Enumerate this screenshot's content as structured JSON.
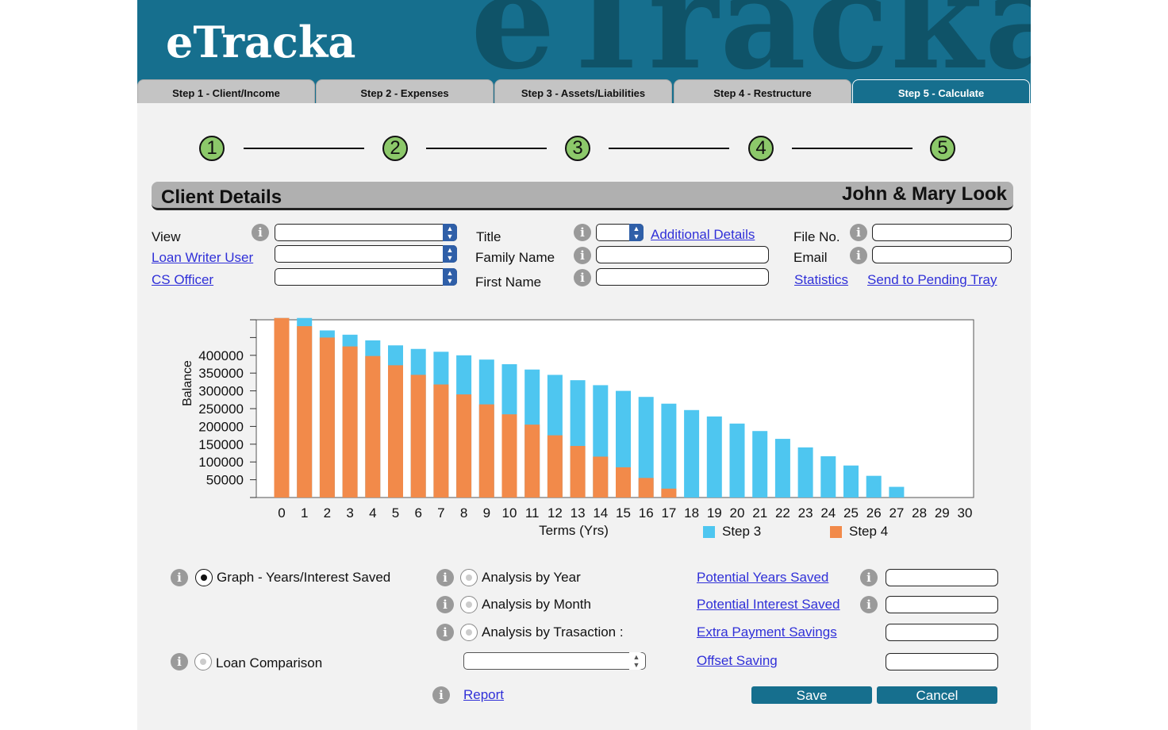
{
  "app": {
    "logo": "eTracka",
    "bg_wordmark": "eTracka"
  },
  "tabs": [
    {
      "label": "Step 1 - Client/Income",
      "active": false
    },
    {
      "label": "Step 2 - Expenses",
      "active": false
    },
    {
      "label": "Step 3 - Assets/Liabilities",
      "active": false
    },
    {
      "label": "Step 4 - Restructure",
      "active": false
    },
    {
      "label": "Step 5 - Calculate",
      "active": true
    }
  ],
  "steps": [
    "1",
    "2",
    "3",
    "4",
    "5"
  ],
  "client": {
    "title": "Client Details",
    "name": "John & Mary Look"
  },
  "form": {
    "view_label": "View",
    "loan_writer_link": "Loan Writer User",
    "cs_officer_link": "CS Officer",
    "title_label": "Title",
    "additional_details_link": "Additional Details",
    "family_name_label": "Family Name",
    "first_name_label": "First Name",
    "file_no_label": "File No.",
    "email_label": "Email",
    "statistics_link": "Statistics",
    "send_pending_link": "Send to Pending Tray",
    "view_value": "",
    "loan_writer_value": "",
    "cs_officer_value": "",
    "title_value": "",
    "family_name_value": "",
    "first_name_value": "",
    "file_no_value": "",
    "email_value": ""
  },
  "chart_data": {
    "type": "bar",
    "xlabel": "Terms (Yrs)",
    "ylabel": "Balance",
    "ylim": [
      0,
      500000
    ],
    "y_ticks": [
      50000,
      100000,
      150000,
      200000,
      250000,
      300000,
      350000,
      400000
    ],
    "categories": [
      "0",
      "1",
      "2",
      "3",
      "4",
      "5",
      "6",
      "7",
      "8",
      "9",
      "10",
      "11",
      "12",
      "13",
      "14",
      "15",
      "16",
      "17",
      "18",
      "19",
      "20",
      "21",
      "22",
      "23",
      "24",
      "25",
      "26",
      "27",
      "28",
      "29",
      "30"
    ],
    "series": [
      {
        "name": "Step 3",
        "color": "#4ec6f0",
        "values": [
          505000,
          505000,
          470000,
          458000,
          442000,
          428000,
          418000,
          410000,
          400000,
          388000,
          375000,
          360000,
          345000,
          330000,
          316000,
          300000,
          283000,
          264000,
          246000,
          228000,
          208000,
          187000,
          165000,
          141000,
          116000,
          90000,
          61000,
          30000,
          0,
          0,
          0
        ]
      },
      {
        "name": "Step 4",
        "color": "#f28a4a",
        "values": [
          505000,
          482000,
          450000,
          425000,
          398000,
          372000,
          345000,
          318000,
          290000,
          262000,
          234000,
          205000,
          175000,
          145000,
          115000,
          85000,
          55000,
          25000,
          0,
          0,
          0,
          0,
          0,
          0,
          0,
          0,
          0,
          0,
          0,
          0,
          0
        ]
      }
    ],
    "legend_position": "bottom-right",
    "grid": false
  },
  "options": {
    "graph_label": "Graph - Years/Interest Saved",
    "loan_comparison_label": "Loan Comparison",
    "analysis_year_label": "Analysis by Year",
    "analysis_month_label": "Analysis by Month",
    "analysis_transaction_label": "Analysis by Trasaction :",
    "report_link": "Report",
    "transaction_select_value": ""
  },
  "savings": {
    "potential_years_link": "Potential Years Saved",
    "potential_interest_link": "Potential Interest Saved",
    "extra_payment_link": "Extra Payment Savings",
    "offset_saving_link": "Offset Saving",
    "potential_years_value": "",
    "potential_interest_value": "",
    "extra_payment_value": "",
    "offset_saving_value": ""
  },
  "buttons": {
    "save": "Save",
    "cancel": "Cancel"
  },
  "icons": {
    "info": "info-icon",
    "select_arrow": "chevron-updown-icon"
  }
}
